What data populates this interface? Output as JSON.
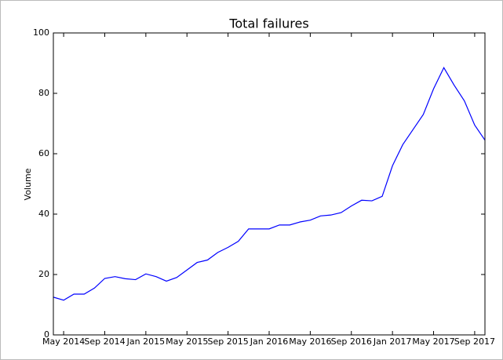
{
  "chart_data": {
    "type": "line",
    "title": "Total failures",
    "y_label": "Volume",
    "x": [
      "2014-04",
      "2014-05",
      "2014-06",
      "2014-07",
      "2014-08",
      "2014-09",
      "2014-10",
      "2014-11",
      "2014-12",
      "2015-01",
      "2015-02",
      "2015-03",
      "2015-04",
      "2015-05",
      "2015-06",
      "2015-07",
      "2015-08",
      "2015-09",
      "2015-10",
      "2015-11",
      "2015-12",
      "2016-01",
      "2016-02",
      "2016-03",
      "2016-04",
      "2016-05",
      "2016-06",
      "2016-07",
      "2016-08",
      "2016-09",
      "2016-10",
      "2016-11",
      "2016-12",
      "2017-01",
      "2017-02",
      "2017-03",
      "2017-04",
      "2017-05",
      "2017-06",
      "2017-07",
      "2017-08",
      "2017-09",
      "2017-10"
    ],
    "series": [
      {
        "name": "Total failures",
        "color": "#0000ff",
        "values": [
          12.5,
          11.5,
          13.5,
          13.5,
          15.5,
          18.7,
          19.3,
          18.6,
          18.3,
          20.2,
          19.3,
          17.8,
          19.0,
          21.5,
          24.0,
          24.8,
          27.3,
          29.0,
          31.0,
          35.1,
          35.1,
          35.1,
          36.4,
          36.4,
          37.4,
          38.0,
          39.4,
          39.7,
          40.5,
          42.7,
          44.6,
          44.4,
          45.9,
          56.0,
          63.0,
          68.0,
          73.0,
          81.5,
          88.5,
          82.7,
          77.5,
          69.5,
          64.5
        ]
      }
    ],
    "xlim": [
      "2014-04",
      "2017-10"
    ],
    "xticks": [
      {
        "value": "2014-05",
        "label": "May 2014"
      },
      {
        "value": "2014-09",
        "label": "Sep 2014"
      },
      {
        "value": "2015-01",
        "label": "Jan 2015"
      },
      {
        "value": "2015-05",
        "label": "May 2015"
      },
      {
        "value": "2015-09",
        "label": "Sep 2015"
      },
      {
        "value": "2016-01",
        "label": "Jan 2016"
      },
      {
        "value": "2016-05",
        "label": "May 2016"
      },
      {
        "value": "2016-09",
        "label": "Sep 2016"
      },
      {
        "value": "2017-01",
        "label": "Jan 2017"
      },
      {
        "value": "2017-05",
        "label": "May 2017"
      },
      {
        "value": "2017-09",
        "label": "Sep 2017"
      }
    ],
    "ylim": [
      0,
      100
    ],
    "yticks": [
      0,
      20,
      40,
      60,
      80,
      100
    ],
    "grid": false
  }
}
